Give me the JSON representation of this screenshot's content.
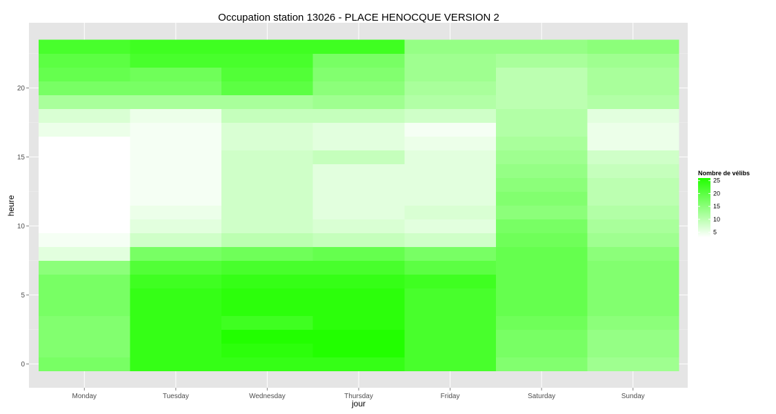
{
  "chart_data": {
    "type": "heatmap",
    "title": "Occupation station 13026 - PLACE HENOCQUE VERSION 2",
    "xlabel": "jour",
    "ylabel": "heure",
    "x_categories": [
      "Monday",
      "Tuesday",
      "Wednesday",
      "Thursday",
      "Friday",
      "Saturday",
      "Sunday"
    ],
    "y_hours": [
      0,
      1,
      2,
      3,
      4,
      5,
      6,
      7,
      8,
      9,
      10,
      11,
      12,
      13,
      14,
      15,
      16,
      17,
      18,
      19,
      20,
      21,
      22,
      23
    ],
    "y_ticks": [
      0,
      5,
      10,
      15,
      20
    ],
    "ylim": [
      -0.5,
      23.5
    ],
    "grid": true,
    "legend": {
      "title": "Nombre de vélibs",
      "position": "right",
      "min": 3,
      "max": 26,
      "breaks": [
        5,
        10,
        15,
        20,
        25
      ],
      "low_color": "#ffffff",
      "high_color": "#22ff00"
    },
    "values": [
      [
        17,
        24,
        24,
        24,
        22,
        16,
        13
      ],
      [
        16,
        24,
        25,
        26,
        22,
        17,
        14
      ],
      [
        16,
        24,
        26,
        26,
        22,
        17,
        14
      ],
      [
        16,
        24,
        23,
        25,
        22,
        18,
        15
      ],
      [
        17,
        24,
        25,
        25,
        22,
        19,
        16
      ],
      [
        17,
        24,
        25,
        25,
        22,
        19,
        16
      ],
      [
        17,
        23,
        24,
        24,
        23,
        19,
        16
      ],
      [
        15,
        21,
        22,
        22,
        20,
        19,
        16
      ],
      [
        6,
        17,
        18,
        19,
        17,
        19,
        15
      ],
      [
        4,
        8,
        10,
        9,
        8,
        18,
        13
      ],
      [
        3,
        6,
        8,
        7,
        6,
        17,
        12
      ],
      [
        3,
        5,
        8,
        6,
        7,
        15,
        11
      ],
      [
        3,
        4,
        8,
        6,
        6,
        16,
        10
      ],
      [
        3,
        4,
        8,
        6,
        6,
        15,
        10
      ],
      [
        3,
        4,
        8,
        6,
        6,
        14,
        9
      ],
      [
        3,
        4,
        8,
        9,
        6,
        13,
        8
      ],
      [
        3,
        4,
        7,
        6,
        5,
        12,
        5
      ],
      [
        5,
        4,
        7,
        6,
        4,
        11,
        5
      ],
      [
        7,
        5,
        9,
        9,
        8,
        11,
        6
      ],
      [
        12,
        12,
        12,
        13,
        11,
        10,
        11
      ],
      [
        17,
        17,
        20,
        15,
        12,
        10,
        12
      ],
      [
        19,
        18,
        21,
        16,
        13,
        10,
        12
      ],
      [
        20,
        22,
        22,
        17,
        13,
        12,
        13
      ],
      [
        22,
        23,
        23,
        23,
        14,
        14,
        15
      ]
    ]
  }
}
